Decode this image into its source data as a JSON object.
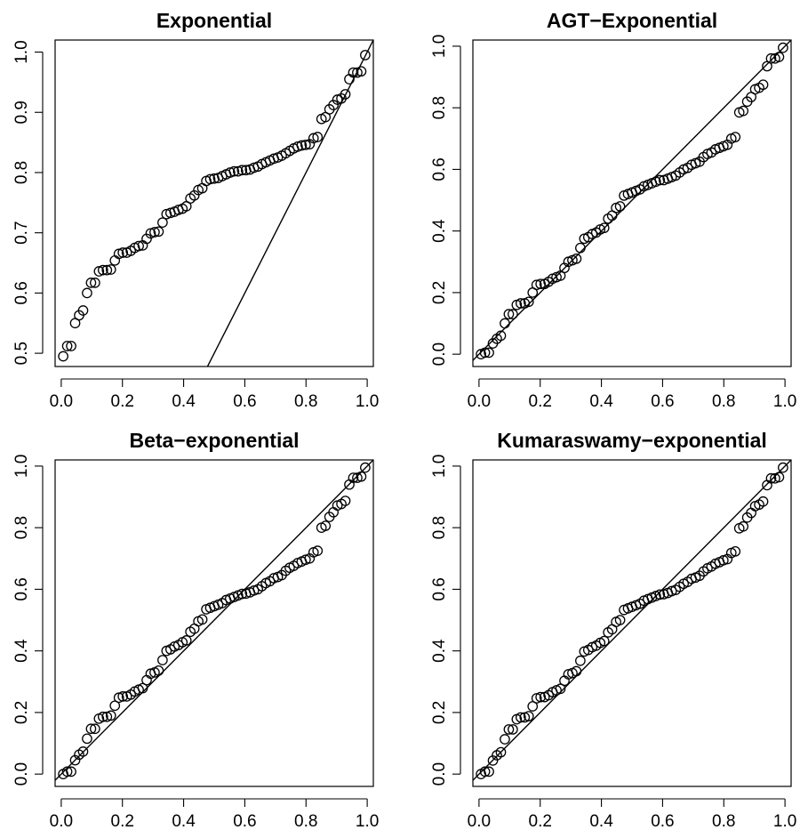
{
  "chart_data": [
    {
      "type": "scatter",
      "title": "Exponential",
      "xlim": [
        -0.02,
        1.02
      ],
      "ylim": [
        0.478,
        1.02
      ],
      "xticks": [
        "0.0",
        "0.2",
        "0.4",
        "0.6",
        "0.8",
        "1.0"
      ],
      "yticks": [
        "0.5",
        "0.6",
        "0.7",
        "0.8",
        "0.9",
        "1.0"
      ],
      "reference_line": {
        "intercept": 0,
        "slope": 1
      },
      "y": [
        0.495,
        0.512,
        0.512,
        0.55,
        0.563,
        0.571,
        0.6,
        0.617,
        0.617,
        0.636,
        0.638,
        0.638,
        0.639,
        0.654,
        0.665,
        0.667,
        0.667,
        0.67,
        0.675,
        0.678,
        0.679,
        0.69,
        0.699,
        0.701,
        0.702,
        0.717,
        0.731,
        0.733,
        0.735,
        0.738,
        0.74,
        0.744,
        0.757,
        0.762,
        0.771,
        0.774,
        0.786,
        0.789,
        0.79,
        0.791,
        0.794,
        0.797,
        0.8,
        0.802,
        0.802,
        0.804,
        0.804,
        0.805,
        0.808,
        0.81,
        0.814,
        0.817,
        0.82,
        0.823,
        0.825,
        0.828,
        0.832,
        0.836,
        0.84,
        0.843,
        0.845,
        0.846,
        0.847,
        0.857,
        0.859,
        0.889,
        0.892,
        0.905,
        0.912,
        0.921,
        0.923,
        0.93,
        0.955,
        0.966,
        0.966,
        0.968,
        0.995
      ]
    },
    {
      "type": "scatter",
      "title": "AGT−Exponential",
      "xlim": [
        -0.02,
        1.02
      ],
      "ylim": [
        -0.04,
        1.02
      ],
      "xticks": [
        "0.0",
        "0.2",
        "0.4",
        "0.6",
        "0.8",
        "1.0"
      ],
      "yticks": [
        "0.0",
        "0.2",
        "0.4",
        "0.6",
        "0.8",
        "1.0"
      ],
      "reference_line": {
        "intercept": 0,
        "slope": 1
      },
      "y": [
        0.0,
        0.005,
        0.005,
        0.035,
        0.05,
        0.06,
        0.1,
        0.13,
        0.13,
        0.16,
        0.165,
        0.165,
        0.17,
        0.2,
        0.225,
        0.228,
        0.228,
        0.235,
        0.245,
        0.25,
        0.255,
        0.28,
        0.3,
        0.305,
        0.31,
        0.345,
        0.375,
        0.38,
        0.39,
        0.395,
        0.405,
        0.41,
        0.44,
        0.45,
        0.475,
        0.48,
        0.515,
        0.52,
        0.525,
        0.53,
        0.535,
        0.545,
        0.55,
        0.555,
        0.56,
        0.565,
        0.565,
        0.57,
        0.575,
        0.58,
        0.59,
        0.6,
        0.605,
        0.615,
        0.62,
        0.625,
        0.64,
        0.65,
        0.655,
        0.665,
        0.67,
        0.675,
        0.68,
        0.7,
        0.705,
        0.785,
        0.79,
        0.82,
        0.835,
        0.86,
        0.865,
        0.875,
        0.935,
        0.96,
        0.96,
        0.965,
        0.995
      ]
    },
    {
      "type": "scatter",
      "title": "Beta−exponential",
      "xlim": [
        -0.02,
        1.02
      ],
      "ylim": [
        -0.04,
        1.02
      ],
      "xticks": [
        "0.0",
        "0.2",
        "0.4",
        "0.6",
        "0.8",
        "1.0"
      ],
      "yticks": [
        "0.0",
        "0.2",
        "0.4",
        "0.6",
        "0.8",
        "1.0"
      ],
      "reference_line": {
        "intercept": 0,
        "slope": 1
      },
      "y": [
        0.0,
        0.008,
        0.008,
        0.045,
        0.063,
        0.073,
        0.115,
        0.147,
        0.147,
        0.18,
        0.186,
        0.186,
        0.19,
        0.222,
        0.248,
        0.252,
        0.252,
        0.258,
        0.268,
        0.274,
        0.279,
        0.305,
        0.326,
        0.33,
        0.336,
        0.37,
        0.4,
        0.405,
        0.414,
        0.419,
        0.428,
        0.434,
        0.462,
        0.472,
        0.496,
        0.502,
        0.535,
        0.54,
        0.545,
        0.55,
        0.555,
        0.565,
        0.57,
        0.575,
        0.58,
        0.585,
        0.586,
        0.59,
        0.596,
        0.6,
        0.61,
        0.62,
        0.626,
        0.636,
        0.64,
        0.646,
        0.66,
        0.67,
        0.676,
        0.685,
        0.69,
        0.696,
        0.7,
        0.72,
        0.725,
        0.8,
        0.806,
        0.835,
        0.85,
        0.872,
        0.877,
        0.887,
        0.94,
        0.962,
        0.962,
        0.966,
        0.995
      ]
    },
    {
      "type": "scatter",
      "title": "Kumaraswamy−exponential",
      "xlim": [
        -0.02,
        1.02
      ],
      "ylim": [
        -0.04,
        1.02
      ],
      "xticks": [
        "0.0",
        "0.2",
        "0.4",
        "0.6",
        "0.8",
        "1.0"
      ],
      "yticks": [
        "0.0",
        "0.2",
        "0.4",
        "0.6",
        "0.8",
        "1.0"
      ],
      "reference_line": {
        "intercept": 0,
        "slope": 1
      },
      "y": [
        0.0,
        0.008,
        0.008,
        0.044,
        0.061,
        0.071,
        0.113,
        0.145,
        0.145,
        0.178,
        0.184,
        0.184,
        0.188,
        0.22,
        0.246,
        0.25,
        0.25,
        0.256,
        0.266,
        0.272,
        0.277,
        0.303,
        0.324,
        0.328,
        0.334,
        0.368,
        0.398,
        0.403,
        0.412,
        0.417,
        0.426,
        0.432,
        0.46,
        0.47,
        0.494,
        0.5,
        0.533,
        0.538,
        0.543,
        0.548,
        0.553,
        0.563,
        0.568,
        0.573,
        0.578,
        0.583,
        0.584,
        0.588,
        0.594,
        0.598,
        0.608,
        0.618,
        0.624,
        0.634,
        0.638,
        0.644,
        0.658,
        0.668,
        0.674,
        0.683,
        0.688,
        0.694,
        0.698,
        0.718,
        0.723,
        0.798,
        0.804,
        0.833,
        0.848,
        0.87,
        0.875,
        0.885,
        0.938,
        0.96,
        0.96,
        0.964,
        0.995
      ]
    }
  ]
}
